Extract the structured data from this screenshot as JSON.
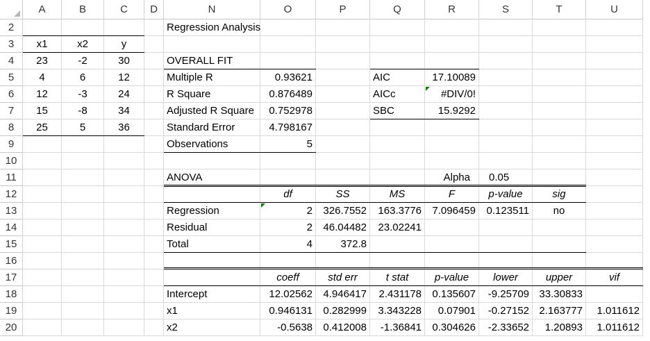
{
  "columns": [
    {
      "letter": "A",
      "w": 56
    },
    {
      "letter": "B",
      "w": 61
    },
    {
      "letter": "C",
      "w": 58
    },
    {
      "letter": "D",
      "w": 28
    },
    {
      "letter": "N",
      "w": 139
    },
    {
      "letter": "O",
      "w": 80
    },
    {
      "letter": "P",
      "w": 78
    },
    {
      "letter": "Q",
      "w": 79
    },
    {
      "letter": "R",
      "w": 78
    },
    {
      "letter": "S",
      "w": 77
    },
    {
      "letter": "T",
      "w": 77
    },
    {
      "letter": "U",
      "w": 82
    }
  ],
  "rows": [
    2,
    3,
    4,
    5,
    6,
    7,
    8,
    9,
    10,
    11,
    12,
    13,
    14,
    15,
    16,
    17,
    18,
    19,
    20
  ],
  "cells": {
    "N2": "Regression Analysis",
    "A3": "x1",
    "B3": "x2",
    "C3": "y",
    "A4": "23",
    "B4": "-2",
    "C4": "30",
    "A5": "4",
    "B5": "6",
    "C5": "12",
    "A6": "12",
    "B6": "-3",
    "C6": "24",
    "A7": "15",
    "B7": "-8",
    "C7": "34",
    "A8": "25",
    "B8": "5",
    "C8": "36",
    "N4": "OVERALL FIT",
    "N5": "Multiple R",
    "O5": "0.93621",
    "Q5": "AIC",
    "R5": "17.10089",
    "N6": "R Square",
    "O6": "0.876489",
    "Q6": "AICc",
    "R6": "#DIV/0!",
    "N7": "Adjusted R Square",
    "O7": "0.752978",
    "Q7": "SBC",
    "R7": "15.9292",
    "N8": "Standard Error",
    "O8": "4.798167",
    "N9": "Observations",
    "O9": "5",
    "N11": "ANOVA",
    "R11": "Alpha",
    "S11": "0.05",
    "O12": "df",
    "P12": "SS",
    "Q12": "MS",
    "R12": "F",
    "S12": "p-value",
    "T12": "sig",
    "N13": "Regression",
    "O13": "2",
    "P13": "326.7552",
    "Q13": "163.3776",
    "R13": "7.096459",
    "S13": "0.123511",
    "T13": "no",
    "N14": "Residual",
    "O14": "2",
    "P14": "46.04482",
    "Q14": "23.02241",
    "N15": "Total",
    "O15": "4",
    "P15": "372.8",
    "O17": "coeff",
    "P17": "std err",
    "Q17": "t stat",
    "R17": "p-value",
    "S17": "lower",
    "T17": "upper",
    "U17": "vif",
    "N18": "Intercept",
    "O18": "12.02562",
    "P18": "4.946417",
    "Q18": "2.431178",
    "R18": "0.135607",
    "S18": "-9.25709",
    "T18": "33.30833",
    "N19": "x1",
    "O19": "0.946131",
    "P19": "0.282999",
    "Q19": "3.343228",
    "R19": "0.07901",
    "S19": "-0.27152",
    "T19": "2.163777",
    "U19": "1.011612",
    "N20": "x2",
    "O20": "-0.5638",
    "P20": "0.412008",
    "Q20": "-1.36841",
    "R20": "0.304626",
    "S20": "-2.33652",
    "T20": "1.20893",
    "U20": "1.011612"
  },
  "colors": {
    "gridline": "#d9d9d9",
    "error_indicator": "#107c10"
  }
}
